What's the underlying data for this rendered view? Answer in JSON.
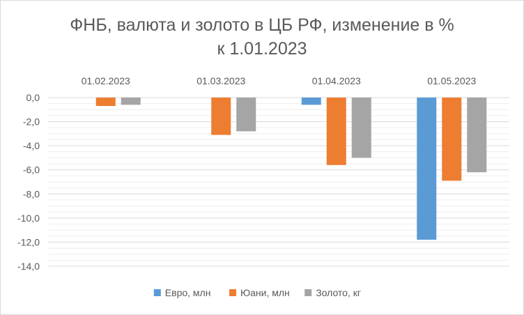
{
  "chart_data": {
    "type": "bar",
    "title": [
      "ФНБ, валюта и золото в ЦБ РФ, изменение в %",
      "к 1.01.2023"
    ],
    "categories": [
      "01.02.2023",
      "01.03.2023",
      "01.04.2023",
      "01.05.2023"
    ],
    "series": [
      {
        "name": "Евро, млн",
        "color": "#5b9bd5",
        "values": [
          0.0,
          0.0,
          -0.6,
          -11.8
        ]
      },
      {
        "name": "Юани, млн",
        "color": "#ed7d31",
        "values": [
          -0.7,
          -3.1,
          -5.6,
          -6.9
        ]
      },
      {
        "name": "Золото, кг",
        "color": "#a5a5a5",
        "values": [
          -0.6,
          -2.8,
          -5.0,
          -6.2
        ]
      }
    ],
    "ylim": [
      -14,
      0
    ],
    "yticks": [
      "0,0",
      "-2,0",
      "-4,0",
      "-6,0",
      "-8,0",
      "-10,0",
      "-12,0",
      "-14,0"
    ],
    "ytick_values": [
      0,
      -2,
      -4,
      -6,
      -8,
      -10,
      -12,
      -14
    ],
    "category_axis_position": "top",
    "legend_position": "bottom",
    "grid": true
  }
}
